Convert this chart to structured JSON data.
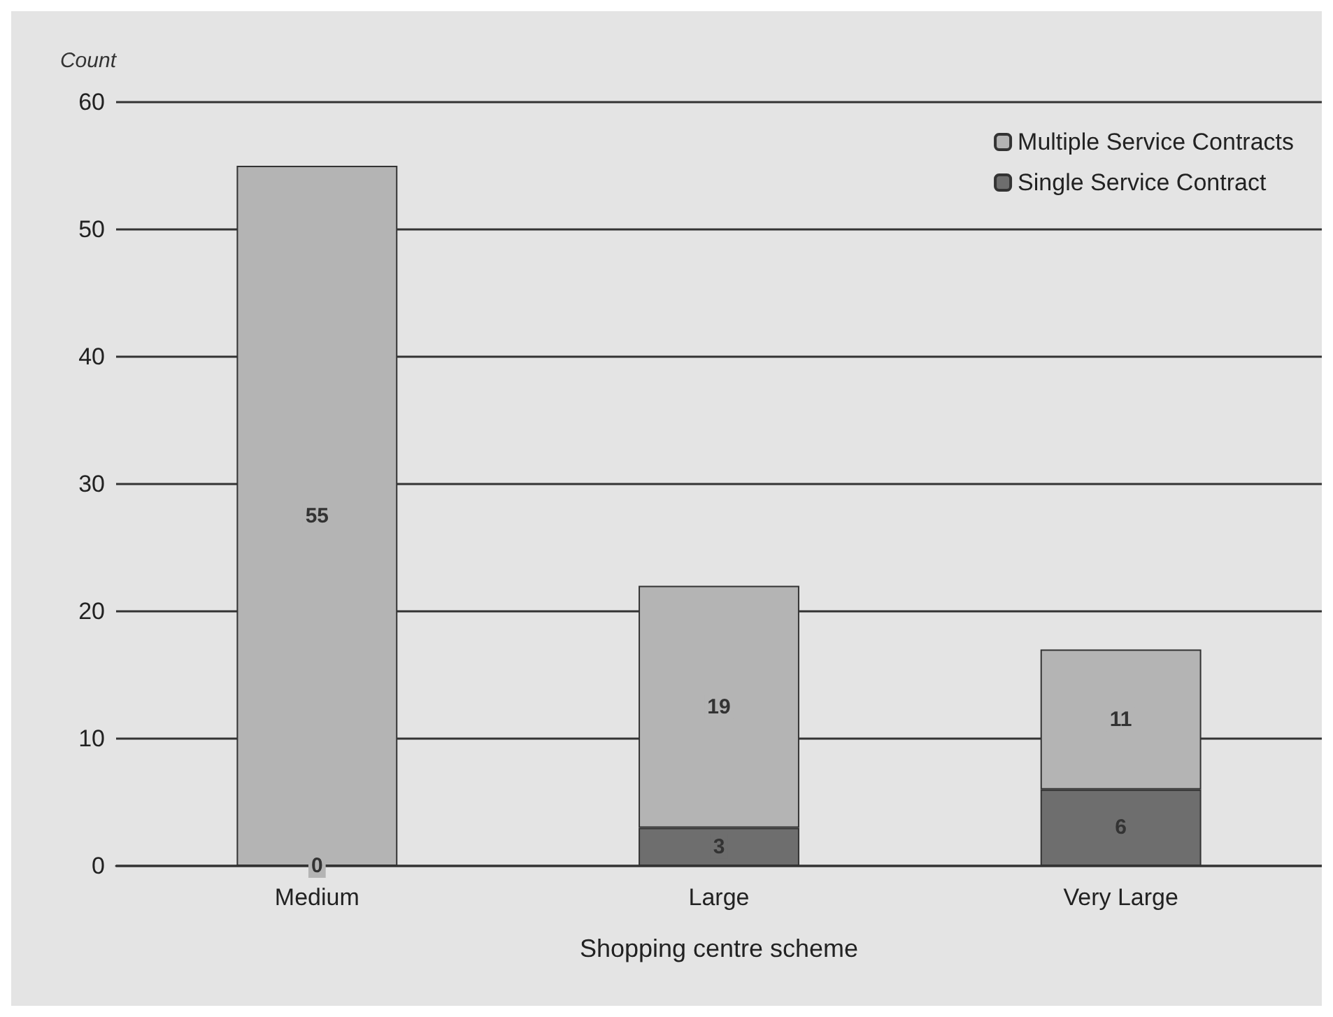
{
  "chart_data": {
    "type": "bar",
    "xlabel": "Shopping centre scheme",
    "ylabel": "Count",
    "categories": [
      "Medium",
      "Large",
      "Very Large"
    ],
    "stacked": true,
    "series": [
      {
        "name": "Single Service Contract",
        "color": "#6e6e6e",
        "values": [
          0,
          3,
          6
        ],
        "value_labels": [
          null,
          "3",
          "6"
        ]
      },
      {
        "name": "Multiple Service Contracts",
        "color": "#b4b4b4",
        "values": [
          55,
          19,
          11
        ],
        "value_labels": [
          "55",
          "19",
          "11"
        ]
      }
    ],
    "annotations": [
      {
        "text": "0",
        "x": "Medium",
        "y": 0
      }
    ],
    "ylim": [
      0,
      60
    ],
    "yticks": [
      0,
      10,
      20,
      30,
      40,
      50,
      60
    ],
    "grid": "y",
    "legend": "top right"
  }
}
